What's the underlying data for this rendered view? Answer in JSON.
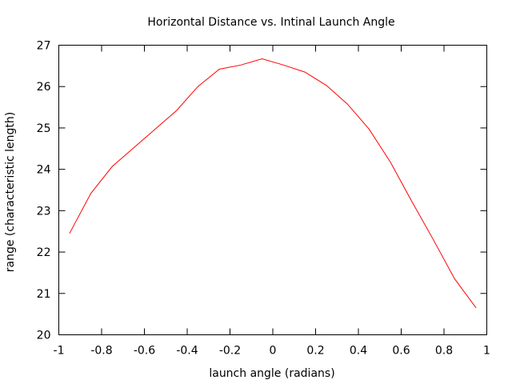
{
  "chart_data": {
    "type": "line",
    "title": "Horizontal Distance vs. Intinal Launch Angle",
    "xlabel": "launch angle (radians)",
    "ylabel": "range (characteristic length)",
    "xlim": [
      -1,
      1
    ],
    "ylim": [
      20,
      27
    ],
    "x_ticks": [
      "-1",
      "-0.8",
      "-0.6",
      "-0.4",
      "-0.2",
      "0",
      "0.2",
      "0.4",
      "0.6",
      "0.8",
      "1"
    ],
    "y_ticks": [
      "20",
      "21",
      "22",
      "23",
      "24",
      "25",
      "26",
      "27"
    ],
    "grid": false,
    "legend": "none",
    "series": [
      {
        "color": "#ff0000",
        "x": [
          -0.95,
          -0.85,
          -0.75,
          -0.65,
          -0.55,
          -0.45,
          -0.35,
          -0.25,
          -0.15,
          -0.05,
          0.05,
          0.15,
          0.25,
          0.35,
          0.45,
          0.55,
          0.65,
          0.75,
          0.85,
          0.95
        ],
        "y": [
          22.45,
          23.42,
          24.07,
          24.52,
          24.97,
          25.42,
          26.0,
          26.42,
          26.52,
          26.67,
          26.52,
          26.35,
          26.03,
          25.57,
          24.97,
          24.17,
          23.22,
          22.3,
          21.35,
          20.65
        ]
      }
    ]
  }
}
